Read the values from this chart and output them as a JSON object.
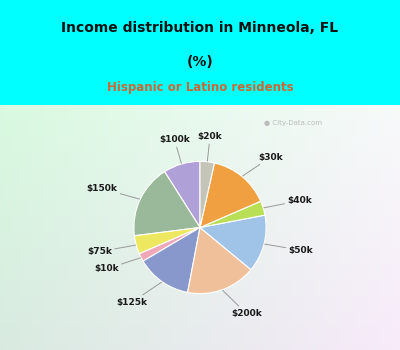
{
  "title_line1": "Income distribution in Minneola, FL",
  "title_line2": "(%)",
  "subtitle": "Hispanic or Latino residents",
  "title_color": "#111111",
  "subtitle_color": "#cc6633",
  "bg_cyan": "#00ffff",
  "labels": [
    "$100k",
    "$150k",
    "$75k",
    "$10k",
    "$125k",
    "$200k",
    "$50k",
    "$40k",
    "$30k",
    "$20k"
  ],
  "values": [
    9.0,
    18.0,
    4.5,
    2.0,
    13.5,
    17.0,
    14.0,
    3.5,
    15.0,
    3.5
  ],
  "colors": [
    "#b0a0d8",
    "#9ab89a",
    "#eee860",
    "#f0a8b8",
    "#8898cc",
    "#f0c09a",
    "#a0c4e8",
    "#b8df55",
    "#f0a040",
    "#c4c4b8"
  ],
  "startangle": 90,
  "watermark": "City-Data.com"
}
